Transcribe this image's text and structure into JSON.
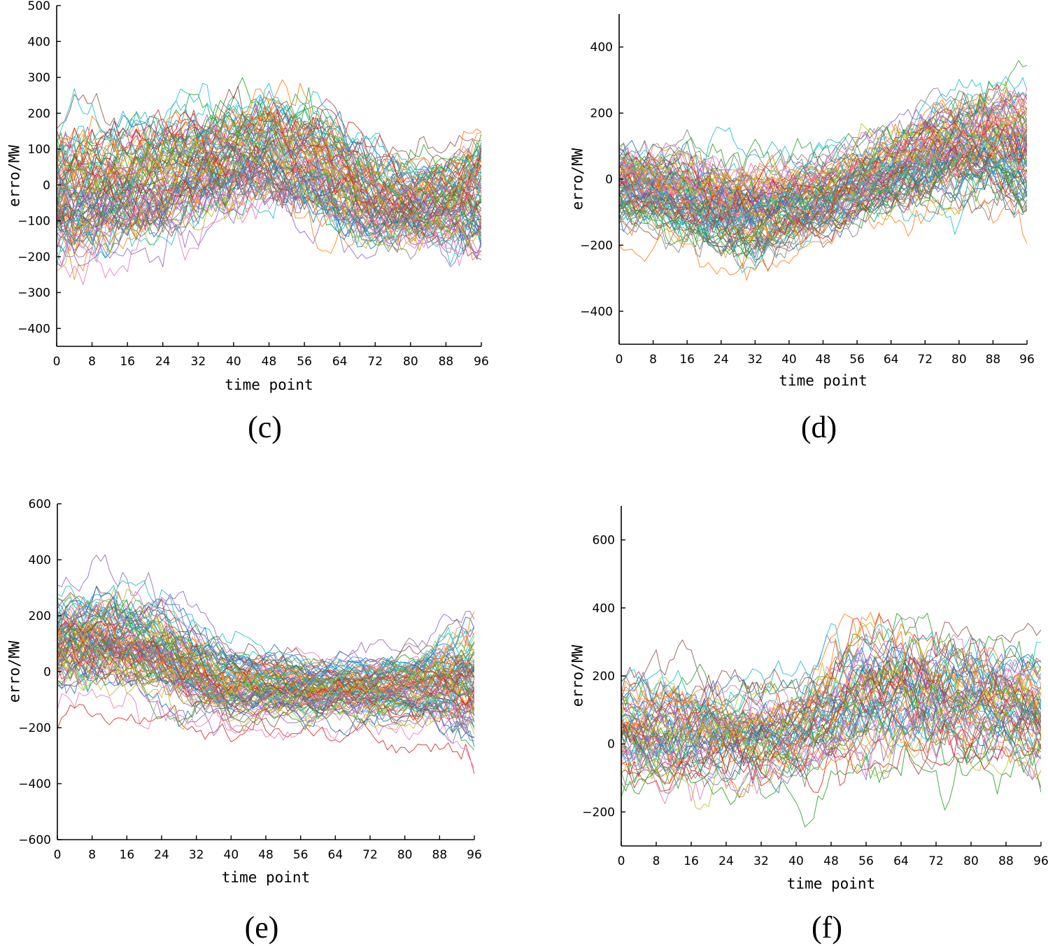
{
  "palette": [
    "#1f77b4",
    "#ff7f0e",
    "#2ca02c",
    "#d62728",
    "#9467bd",
    "#8c564b",
    "#e377c2",
    "#7f7f7f",
    "#bcbd22",
    "#17becf"
  ],
  "chart_data": [
    {
      "id": "c",
      "type": "line",
      "panel_label": "(c)",
      "xlabel": "time point",
      "ylabel": "erro/MW",
      "xlim": [
        0,
        96
      ],
      "ylim": [
        -450,
        500
      ],
      "xticks": [
        0,
        8,
        16,
        24,
        32,
        40,
        48,
        56,
        64,
        72,
        80,
        88,
        96
      ],
      "yticks": [
        -400,
        -300,
        -200,
        -100,
        0,
        100,
        200,
        300,
        400,
        500
      ],
      "grid": false,
      "series_count": 100,
      "series_template": {
        "x": [
          0,
          8,
          16,
          24,
          32,
          40,
          48,
          56,
          64,
          72,
          80,
          88,
          96
        ],
        "mean": [
          -30,
          -10,
          0,
          20,
          60,
          90,
          100,
          70,
          20,
          -40,
          -50,
          -40,
          -20
        ],
        "spread": [
          120,
          110,
          100,
          100,
          100,
          100,
          100,
          100,
          100,
          90,
          80,
          80,
          120
        ]
      }
    },
    {
      "id": "d",
      "type": "line",
      "panel_label": "(d)",
      "xlabel": "time point",
      "ylabel": "erro/MW",
      "xlim": [
        0,
        96
      ],
      "ylim": [
        -500,
        500
      ],
      "xticks": [
        0,
        8,
        16,
        24,
        32,
        40,
        48,
        56,
        64,
        72,
        80,
        88,
        96
      ],
      "yticks": [
        -400,
        -200,
        0,
        200,
        400
      ],
      "grid": false,
      "series_count": 100,
      "series_template": {
        "x": [
          0,
          8,
          16,
          24,
          32,
          40,
          48,
          56,
          64,
          72,
          80,
          88,
          96
        ],
        "mean": [
          -20,
          -40,
          -60,
          -90,
          -110,
          -90,
          -60,
          -20,
          20,
          60,
          90,
          100,
          80
        ],
        "spread": [
          90,
          80,
          90,
          100,
          100,
          90,
          80,
          80,
          80,
          90,
          100,
          110,
          120
        ]
      }
    },
    {
      "id": "e",
      "type": "line",
      "panel_label": "(e)",
      "xlabel": "time point",
      "ylabel": "erro/MW",
      "xlim": [
        0,
        96
      ],
      "ylim": [
        -600,
        600
      ],
      "xticks": [
        0,
        8,
        16,
        24,
        32,
        40,
        48,
        56,
        64,
        72,
        80,
        88,
        96
      ],
      "yticks": [
        -600,
        -400,
        -200,
        0,
        200,
        400,
        600
      ],
      "grid": false,
      "series_count": 100,
      "series_template": {
        "x": [
          0,
          8,
          16,
          24,
          32,
          40,
          48,
          56,
          64,
          72,
          80,
          88,
          96
        ],
        "mean": [
          100,
          110,
          100,
          60,
          0,
          -40,
          -50,
          -55,
          -60,
          -60,
          -55,
          -50,
          -40
        ],
        "spread": [
          110,
          110,
          110,
          100,
          90,
          80,
          70,
          70,
          70,
          70,
          70,
          90,
          130
        ]
      }
    },
    {
      "id": "f",
      "type": "line",
      "panel_label": "(f)",
      "xlabel": "time point",
      "ylabel": "erro/MW",
      "xlim": [
        0,
        96
      ],
      "ylim": [
        -300,
        700
      ],
      "xticks": [
        0,
        8,
        16,
        24,
        32,
        40,
        48,
        56,
        64,
        72,
        80,
        88,
        96
      ],
      "yticks": [
        -200,
        0,
        200,
        400,
        600
      ],
      "grid": false,
      "series_count": 70,
      "series_template": {
        "x": [
          0,
          8,
          16,
          24,
          32,
          40,
          48,
          56,
          64,
          72,
          80,
          88,
          96
        ],
        "mean": [
          60,
          50,
          50,
          40,
          40,
          50,
          100,
          150,
          160,
          150,
          140,
          120,
          100
        ],
        "spread": [
          110,
          110,
          110,
          100,
          100,
          100,
          110,
          130,
          130,
          120,
          120,
          110,
          120
        ]
      }
    }
  ]
}
